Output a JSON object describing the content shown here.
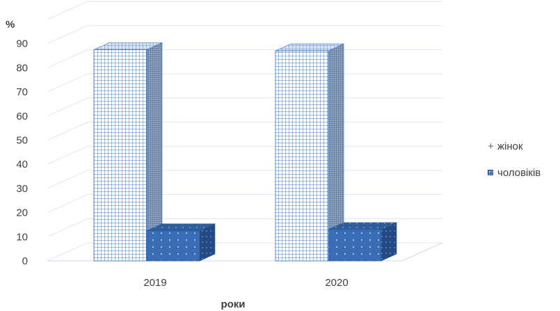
{
  "chart_data": {
    "type": "bar",
    "title": "",
    "ylabel": "%",
    "xlabel": "роки",
    "ylim": [
      0,
      90
    ],
    "yticks": [
      0,
      10,
      20,
      30,
      40,
      50,
      60,
      70,
      80,
      90
    ],
    "categories": [
      "2019",
      "2020"
    ],
    "series": [
      {
        "name": "жінок",
        "values": [
          87.5,
          87.0
        ],
        "color": "#2f6ab6",
        "pattern": "grid"
      },
      {
        "name": "чоловіків",
        "values": [
          12.5,
          13.0
        ],
        "color": "#3b6db5",
        "pattern": "dots"
      }
    ],
    "grid": true,
    "legend": "right",
    "three_d": true
  }
}
